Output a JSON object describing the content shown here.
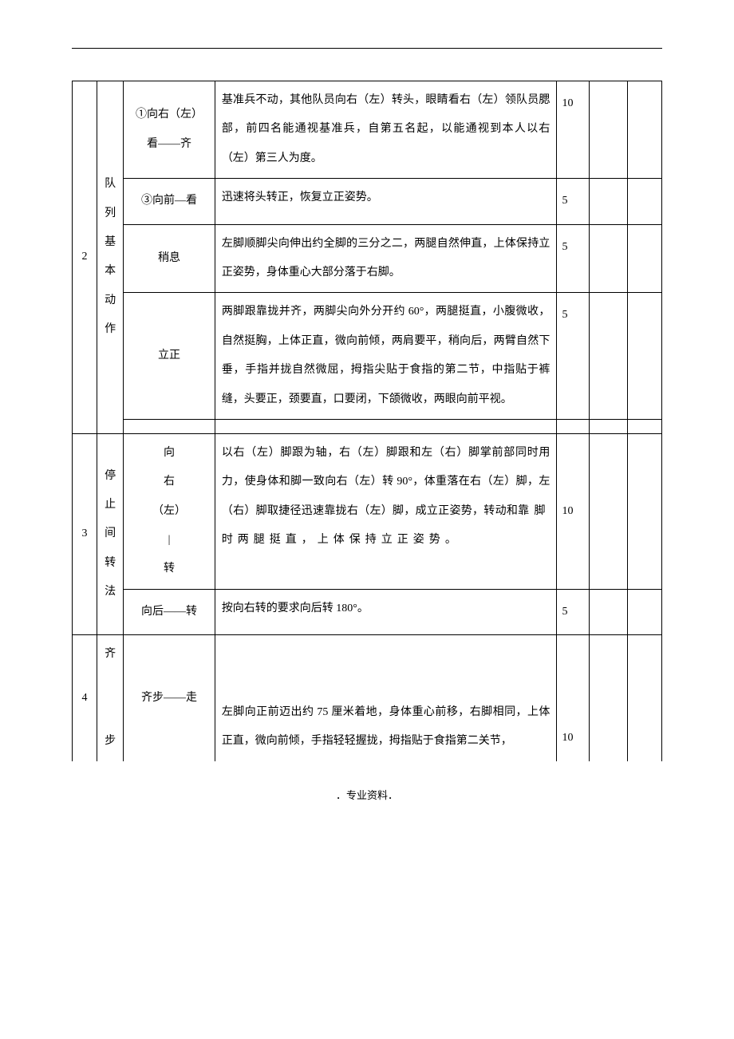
{
  "footer": "．专业资料．",
  "sections": [
    {
      "num": "2",
      "category": "队列基本动作",
      "rows": [
        {
          "action": "①向右（左）看——齐",
          "desc": "基准兵不动，其他队员向右（左）转头，眼睛看右（左）领队员腮部，前四名能通视基准兵，自第五名起，以能通视到本人以右（左）第三人为度。",
          "score": "10"
        },
        {
          "action": "③向前—看",
          "desc": "迅速将头转正，恢复立正姿势。",
          "score": "5"
        },
        {
          "action": "稍息",
          "desc": "左脚顺脚尖向伸出约全脚的三分之二，两腿自然伸直，上体保持立正姿势，身体重心大部分落于右脚。",
          "score": "5"
        },
        {
          "action": "立正",
          "desc": "两脚跟靠拢并齐，两脚尖向外分开约 60°，两腿挺直，小腹微收，自然挺胸，上体正直，微向前倾，两肩要平，稍向后，两臂自然下垂，手指并拢自然微屈，拇指尖贴于食指的第二节，中指贴于裤缝，头要正，颈要直，口要闭，下颌微收，两眼向前平视。",
          "score": "5"
        }
      ]
    },
    {
      "num": "3",
      "category": "停止间转法",
      "rows": [
        {
          "action": "向右（左）|转",
          "action_lines": [
            "向",
            "右",
            "（左）",
            "|",
            "转"
          ],
          "desc": "以右（左）脚跟为轴，右（左）脚跟和左（右）脚掌前部同时用力，使身体和脚一致向右（左）转 90°，体重落在右（左）脚，左（右）脚取捷径迅速靠拢右（左）脚，成立正姿势，转动和靠脚时两腿挺直，上体保持立正姿势。",
          "desc_spaced": true,
          "score": "10"
        },
        {
          "action": "向后——转",
          "desc": "按向右转的要求向后转 180°。",
          "score": "5"
        }
      ]
    },
    {
      "num": "4",
      "category": "齐步",
      "category_partial": true,
      "rows": [
        {
          "action": "齐步——走",
          "desc": "左脚向正前迈出约 75 厘米着地，身体重心前移，右脚相同，上体正直，微向前倾，手指轻轻握拢，拇指贴于食指第二关节，",
          "score": "10",
          "no_bottom": true
        }
      ]
    }
  ]
}
